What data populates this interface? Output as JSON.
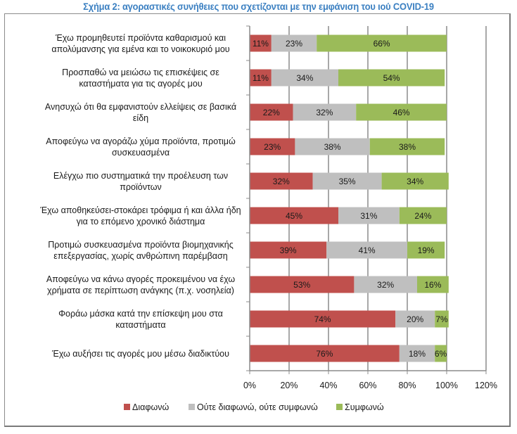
{
  "chart_data": {
    "type": "bar",
    "orientation": "horizontal",
    "stacked": true,
    "title": "Σχήμα 2: αγοραστικές συνήθειες που σχετίζονται με την εμφάνιση του ιού COVID-19",
    "xlabel": "",
    "ylabel": "",
    "xlim": [
      0,
      120
    ],
    "xticks": [
      0,
      20,
      40,
      60,
      80,
      100,
      120
    ],
    "xtick_labels": [
      "0%",
      "20%",
      "40%",
      "60%",
      "80%",
      "100%",
      "120%"
    ],
    "grid": "vertical",
    "legend_position": "bottom",
    "categories": [
      [
        "Έχω προμηθευτεί προϊόντα καθαρισμού και",
        "απολύμανσης για εμένα και το νοικοκυριό μου"
      ],
      [
        "Προσπαθώ να μειώσω τις επισκέψεις σε",
        "καταστήματα για τις αγορές μου"
      ],
      [
        "Ανησυχώ ότι θα εμφανιστούν ελλείψεις σε βασικά",
        "είδη"
      ],
      [
        "Αποφεύγω να αγοράζω χύμα προϊόντα, προτιμώ",
        "συσκευασμένα"
      ],
      [
        "Ελέγχω πιο συστηματικά την προέλευση των",
        "προϊόντων"
      ],
      [
        "Έχω αποθηκεύσει-στοκάρει τρόφιμα ή και άλλα ήδη",
        "για το επόμενο χρονικό διάστημα"
      ],
      [
        "Προτιμώ συσκευασμένα προϊόντα βιομηχανικής",
        "επεξεργασίας, χωρίς ανθρώπινη παρέμβαση"
      ],
      [
        "Αποφεύγω να κάνω αγορές προκειμένου να έχω",
        "χρήματα σε περίπτωση ανάγκης (π.χ. νοσηλεία)"
      ],
      [
        "Φοράω μάσκα κατά την επίσκεψη μου στα",
        "καταστήματα"
      ],
      [
        "Έχω αυξήσει τις αγορές μου μέσω διαδικτύου"
      ]
    ],
    "series": [
      {
        "name": "Διαφωνώ",
        "color": "#c0504d",
        "values": [
          11,
          11,
          22,
          23,
          32,
          45,
          39,
          53,
          74,
          76
        ],
        "labels": [
          "11%",
          "11%",
          "22%",
          "23%",
          "32%",
          "45%",
          "39%",
          "53%",
          "74%",
          "76%"
        ]
      },
      {
        "name": "Ούτε διαφωνώ, ούτε συμφωνώ",
        "color": "#bfbfbf",
        "values": [
          23,
          34,
          32,
          38,
          35,
          31,
          41,
          32,
          20,
          18
        ],
        "labels": [
          "23%",
          "34%",
          "32%",
          "38%",
          "35%",
          "31%",
          "41%",
          "32%",
          "20%",
          "18%"
        ]
      },
      {
        "name": "Συμφωνώ",
        "color": "#9bbb59",
        "values": [
          66,
          54,
          46,
          38,
          34,
          24,
          19,
          16,
          7,
          6
        ],
        "labels": [
          "66%",
          "54%",
          "46%",
          "38%",
          "34%",
          "24%",
          "19%",
          "16%",
          "7%",
          "6%"
        ]
      }
    ]
  }
}
